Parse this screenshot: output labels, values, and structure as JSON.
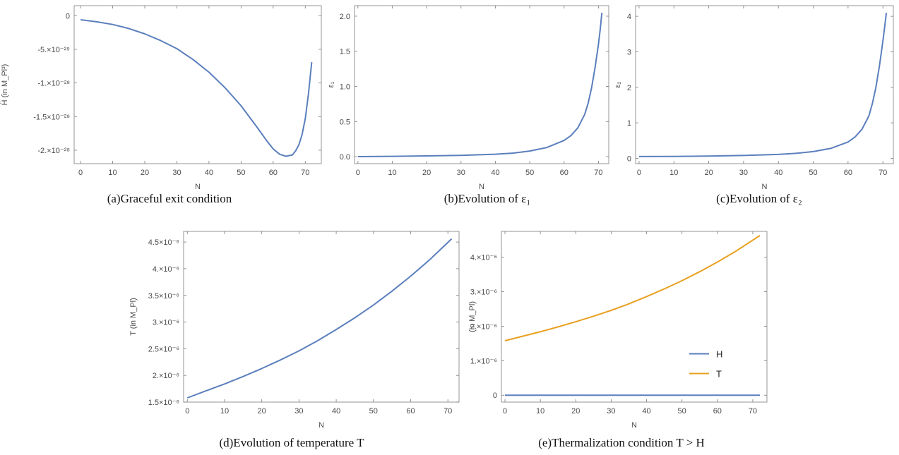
{
  "figure": {
    "captions": [
      {
        "id": "a",
        "label": "(a)",
        "text": "Graceful exit condition"
      },
      {
        "id": "b",
        "label": "(b)",
        "text": "Evolution of ε₁"
      },
      {
        "id": "c",
        "label": "(c)",
        "text": "Evolution of ε₂"
      },
      {
        "id": "d",
        "label": "(d)",
        "text": "Evolution of temperature T"
      },
      {
        "id": "e",
        "label": "(e)",
        "text": "Thermalization condition T > H"
      }
    ]
  },
  "chart_data": [
    {
      "id": "a",
      "type": "line",
      "xlabel": "N",
      "ylabel": "Ḧ (in M_Pl³)",
      "xlim": [
        -2,
        75
      ],
      "ylim": [
        -2.2e-28,
        1.5e-29
      ],
      "xticks": [
        0,
        10,
        20,
        30,
        40,
        50,
        60,
        70
      ],
      "xtick_labels": [
        "0",
        "10",
        "20",
        "30",
        "40",
        "50",
        "60",
        "70"
      ],
      "yticks": [
        0,
        -5e-29,
        -1e-28,
        -1.5e-28,
        -2e-28
      ],
      "ytick_labels": [
        "0",
        "-5.×10⁻²⁹",
        "-1.×10⁻²⁸",
        "-1.5×10⁻²⁸",
        "-2.×10⁻²⁸"
      ],
      "series": [
        {
          "color": "#5b7fbd",
          "x": [
            0,
            5,
            10,
            15,
            20,
            25,
            30,
            35,
            40,
            45,
            50,
            55,
            58,
            60,
            62,
            64,
            66,
            67,
            68,
            69,
            70,
            71,
            72
          ],
          "y": [
            -6e-30,
            -9e-30,
            -1.3e-29,
            -1.9e-29,
            -2.7e-29,
            -3.7e-29,
            -4.9e-29,
            -6.5e-29,
            -8.4e-29,
            -1.07e-28,
            -1.34e-28,
            -1.66e-28,
            -1.86e-28,
            -1.98e-28,
            -2.06e-28,
            -2.09e-28,
            -2.07e-28,
            -2.01e-28,
            -1.92e-28,
            -1.77e-28,
            -1.53e-28,
            -1.16e-28,
            -6.9e-29
          ]
        }
      ]
    },
    {
      "id": "b",
      "type": "line",
      "xlabel": "N",
      "ylabel": "ε₁",
      "xlim": [
        -1,
        73
      ],
      "ylim": [
        -0.1,
        2.15
      ],
      "xticks": [
        0,
        10,
        20,
        30,
        40,
        50,
        60,
        70
      ],
      "xtick_labels": [
        "0",
        "10",
        "20",
        "30",
        "40",
        "50",
        "60",
        "70"
      ],
      "yticks": [
        0,
        0.5,
        1,
        1.5,
        2
      ],
      "ytick_labels": [
        "0.0",
        "0.5",
        "1.0",
        "1.5",
        "2.0"
      ],
      "series": [
        {
          "color": "#5b7fbd",
          "x": [
            0,
            10,
            20,
            30,
            40,
            45,
            50,
            55,
            60,
            62,
            64,
            66,
            67,
            68,
            69,
            70,
            70.5,
            71
          ],
          "y": [
            0.0,
            0.004,
            0.01,
            0.018,
            0.035,
            0.05,
            0.08,
            0.13,
            0.23,
            0.3,
            0.41,
            0.6,
            0.76,
            0.98,
            1.26,
            1.6,
            1.8,
            2.05
          ]
        }
      ]
    },
    {
      "id": "c",
      "type": "line",
      "xlabel": "N",
      "ylabel": "ε₂",
      "xlim": [
        -1,
        73
      ],
      "ylim": [
        -0.15,
        4.3
      ],
      "xticks": [
        0,
        10,
        20,
        30,
        40,
        50,
        60,
        70
      ],
      "xtick_labels": [
        "0",
        "10",
        "20",
        "30",
        "40",
        "50",
        "60",
        "70"
      ],
      "yticks": [
        0,
        1,
        2,
        3,
        4
      ],
      "ytick_labels": [
        "0",
        "1",
        "2",
        "3",
        "4"
      ],
      "series": [
        {
          "color": "#5b7fbd",
          "x": [
            0,
            10,
            20,
            30,
            40,
            45,
            50,
            55,
            60,
            62,
            64,
            66,
            67,
            68,
            69,
            70,
            70.5,
            71
          ],
          "y": [
            0.05,
            0.055,
            0.065,
            0.08,
            0.11,
            0.14,
            0.19,
            0.28,
            0.46,
            0.6,
            0.82,
            1.2,
            1.55,
            2.0,
            2.6,
            3.3,
            3.7,
            4.1
          ]
        }
      ]
    },
    {
      "id": "d",
      "type": "line",
      "xlabel": "N",
      "ylabel": "T (in M_Pl)",
      "xlim": [
        -1,
        73
      ],
      "ylim": [
        1.5e-06,
        4.7e-06
      ],
      "xticks": [
        0,
        10,
        20,
        30,
        40,
        50,
        60,
        70
      ],
      "xtick_labels": [
        "0",
        "10",
        "20",
        "30",
        "40",
        "50",
        "60",
        "70"
      ],
      "yticks": [
        1.5e-06,
        2e-06,
        2.5e-06,
        3e-06,
        3.5e-06,
        4e-06,
        4.5e-06
      ],
      "ytick_labels": [
        "1.5×10⁻⁶",
        "2.×10⁻⁶",
        "2.5×10⁻⁶",
        "3.×10⁻⁶",
        "3.5×10⁻⁶",
        "4.×10⁻⁶",
        "4.5×10⁻⁶"
      ],
      "series": [
        {
          "color": "#5b7fbd",
          "x": [
            0,
            5,
            10,
            15,
            20,
            25,
            30,
            35,
            40,
            45,
            50,
            55,
            60,
            65,
            71
          ],
          "y": [
            1.58e-06,
            1.71e-06,
            1.84e-06,
            1.98e-06,
            2.13e-06,
            2.29e-06,
            2.46e-06,
            2.65e-06,
            2.86e-06,
            3.08e-06,
            3.32e-06,
            3.58e-06,
            3.86e-06,
            4.16e-06,
            4.56e-06
          ]
        }
      ]
    },
    {
      "id": "e",
      "type": "line",
      "xlabel": "N",
      "ylabel": "(in M_Pl)",
      "xlim": [
        -1,
        74
      ],
      "ylim": [
        -2e-07,
        4.75e-06
      ],
      "xticks": [
        0,
        10,
        20,
        30,
        40,
        50,
        60,
        70
      ],
      "xtick_labels": [
        "0",
        "10",
        "20",
        "30",
        "40",
        "50",
        "60",
        "70"
      ],
      "yticks": [
        0,
        1e-06,
        2e-06,
        3e-06,
        4e-06
      ],
      "ytick_labels": [
        "0",
        "1.×10⁻⁶",
        "2.×10⁻⁶",
        "3.×10⁻⁶",
        "4.×10⁻⁶"
      ],
      "legend": {
        "position": "right"
      },
      "series": [
        {
          "name": "H",
          "color": "#5b7fbd",
          "x": [
            0,
            72
          ],
          "y": [
            0,
            0
          ]
        },
        {
          "name": "T",
          "color": "#e8a020",
          "x": [
            0,
            5,
            10,
            15,
            20,
            25,
            30,
            35,
            40,
            45,
            50,
            55,
            60,
            65,
            72
          ],
          "y": [
            1.58e-06,
            1.71e-06,
            1.84e-06,
            1.98e-06,
            2.13e-06,
            2.29e-06,
            2.46e-06,
            2.65e-06,
            2.86e-06,
            3.08e-06,
            3.32e-06,
            3.58e-06,
            3.86e-06,
            4.16e-06,
            4.63e-06
          ]
        }
      ]
    }
  ]
}
